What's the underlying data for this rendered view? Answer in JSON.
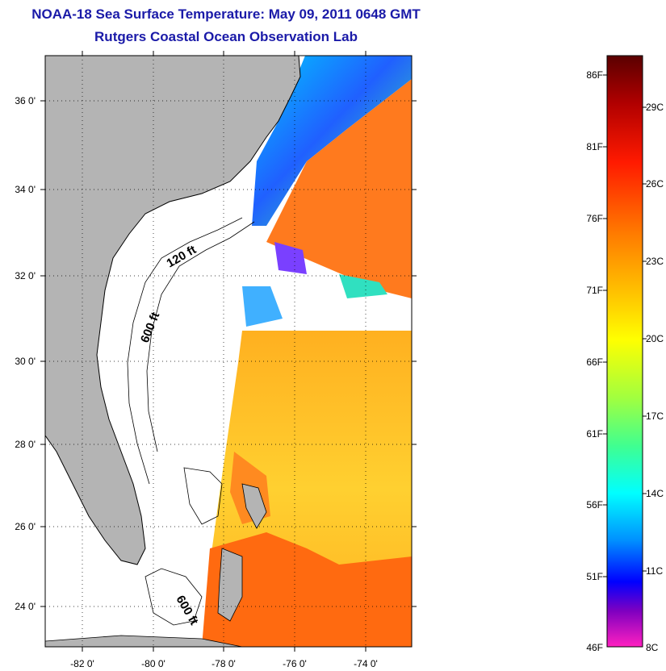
{
  "title": {
    "line1": "NOAA-18 Sea Surface Temperature:  May 09, 2011 0648 GMT",
    "line2": "Rutgers Coastal Ocean Observation Lab"
  },
  "map": {
    "lat_labels": [
      "36 0'",
      "34 0'",
      "32 0'",
      "30 0'",
      "28 0'",
      "26 0'",
      "24 0'"
    ],
    "lon_labels": [
      "-82 0'",
      "-80 0'",
      "-78 0'",
      "-76 0'",
      "-74 0'"
    ],
    "contour_labels": [
      "120 ft",
      "600 ft",
      "600 ft"
    ],
    "colors": {
      "land": "#b4b4b4",
      "no_data": "#ffffff",
      "warm_ocean": "#ff7a1e",
      "moderate_ocean": "#ffc21e"
    }
  },
  "colorbar": {
    "fahrenheit_labels": [
      "86F",
      "81F",
      "76F",
      "71F",
      "66F",
      "61F",
      "56F",
      "51F",
      "46F"
    ],
    "celsius_labels": [
      "29C",
      "26C",
      "23C",
      "20C",
      "17C",
      "14C",
      "11C",
      "8C"
    ]
  }
}
